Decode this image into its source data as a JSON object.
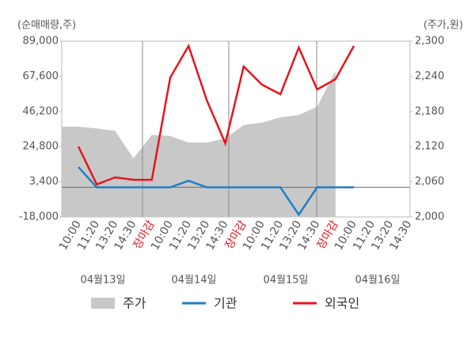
{
  "chart_data": {
    "type": "line",
    "y_axis_label": "(순매매량,주)",
    "y2_axis_label": "(주가,원)",
    "categories": [
      "10:00",
      "11:20",
      "13:20",
      "14:30",
      "장마감",
      "10:00",
      "11:20",
      "13:20",
      "14:30",
      "장마감",
      "10:00",
      "11:20",
      "13:20",
      "14:30",
      "장마감",
      "10:00",
      "11:20",
      "13:20",
      "14:30"
    ],
    "category_colors": [
      "#555",
      "#555",
      "#555",
      "#555",
      "#e8141c",
      "#555",
      "#555",
      "#555",
      "#555",
      "#e8141c",
      "#555",
      "#555",
      "#555",
      "#555",
      "#e8141c",
      "#555",
      "#555",
      "#555",
      "#555"
    ],
    "day_labels": [
      "04월13일",
      "04월14일",
      "04월15일",
      "04월16일"
    ],
    "ylim": [
      -18000,
      89000
    ],
    "yticks": [
      {
        "value": 89000,
        "label": "89,000"
      },
      {
        "value": 67600,
        "label": "67,600"
      },
      {
        "value": 46200,
        "label": "46,200"
      },
      {
        "value": 24800,
        "label": "24,800"
      },
      {
        "value": 3400,
        "label": "3,400"
      },
      {
        "value": -18000,
        "label": "-18,000"
      }
    ],
    "y2lim": [
      2000,
      2300
    ],
    "y2ticks": [
      {
        "value": 2300,
        "label": "2,300"
      },
      {
        "value": 2240,
        "label": "2,240"
      },
      {
        "value": 2180,
        "label": "2,180"
      },
      {
        "value": 2120,
        "label": "2,120"
      },
      {
        "value": 2060,
        "label": "2,060"
      },
      {
        "value": 2000,
        "label": "2,000"
      }
    ],
    "series": [
      {
        "name": "주가",
        "color": "#c8c8c8",
        "axis": "y2",
        "kind": "area",
        "values": [
          2154,
          2151,
          2147,
          2100,
          2140,
          2138,
          2127,
          2127,
          2134,
          2157,
          2161,
          2170,
          2174,
          2188,
          2249,
          null,
          null,
          null,
          null
        ]
      },
      {
        "name": "기관",
        "color": "#1f7fc4",
        "values": [
          12400,
          0,
          0,
          0,
          0,
          0,
          4000,
          0,
          0,
          0,
          0,
          0,
          -16600,
          0,
          0,
          0,
          null,
          null,
          null
        ]
      },
      {
        "name": "외국인",
        "color": "#e8141c",
        "values": [
          24900,
          1800,
          6100,
          4600,
          4600,
          66800,
          86100,
          52800,
          26800,
          73600,
          62500,
          56700,
          85100,
          59600,
          65900,
          86100,
          null,
          null,
          null
        ]
      }
    ]
  }
}
